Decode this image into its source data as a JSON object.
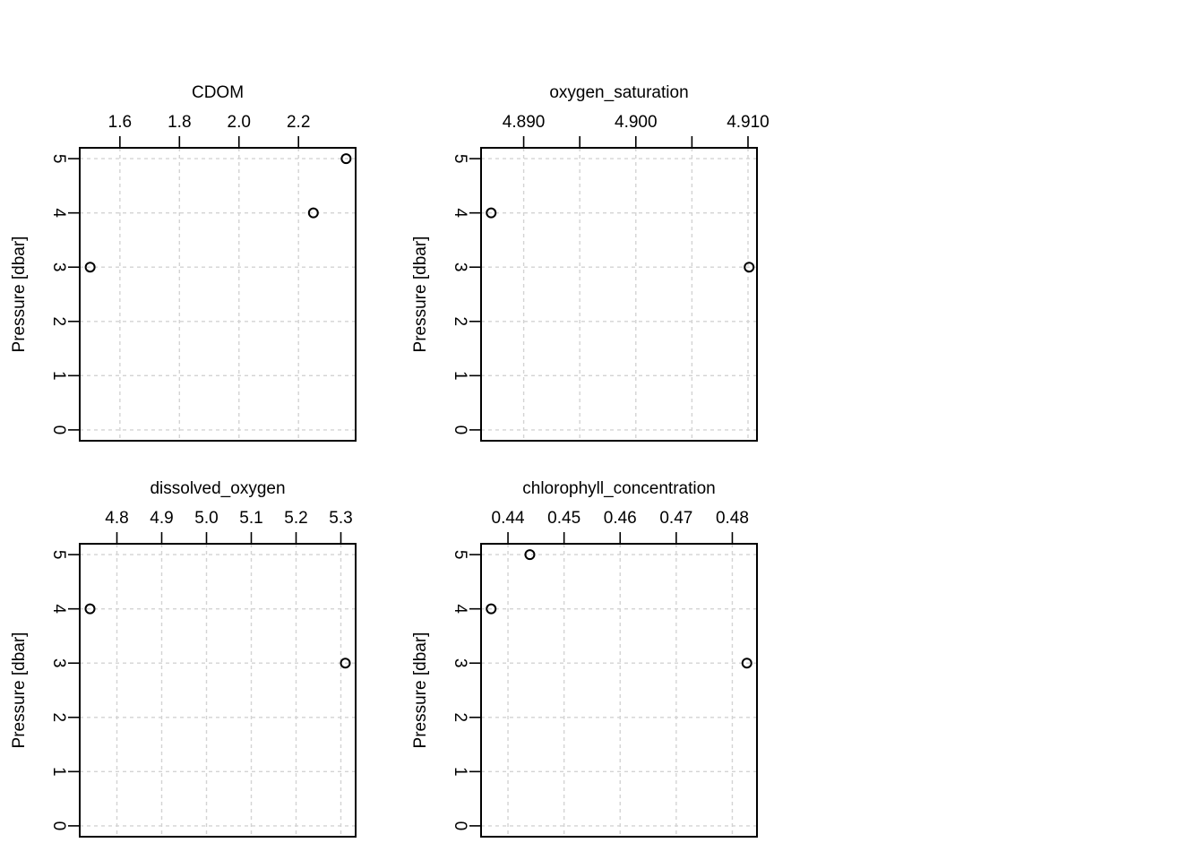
{
  "chart_data": [
    {
      "type": "scatter",
      "title": "CDOM",
      "ylabel": "Pressure [dbar]",
      "xlim": [
        1.465,
        2.392
      ],
      "ylim": [
        5.2,
        -0.2
      ],
      "xticks": [
        1.6,
        1.8,
        2.0,
        2.2
      ],
      "xtick_labels": [
        "1.6",
        "1.8",
        "2.0",
        "2.2"
      ],
      "yticks": [
        0,
        1,
        2,
        3,
        4,
        5
      ],
      "ytick_labels": [
        "0",
        "1",
        "2",
        "3",
        "4",
        "5"
      ],
      "grid": true,
      "points": [
        {
          "x": 1.5,
          "y": 3
        },
        {
          "x": 2.25,
          "y": 4
        },
        {
          "x": 2.36,
          "y": 5
        }
      ]
    },
    {
      "type": "scatter",
      "title": "oxygen_saturation",
      "ylabel": "Pressure [dbar]",
      "xlim": [
        4.8862,
        4.9108
      ],
      "ylim": [
        5.2,
        -0.2
      ],
      "xticks": [
        4.89,
        4.895,
        4.9,
        4.905,
        4.91
      ],
      "xtick_labels": [
        "4.890",
        "",
        "4.900",
        "",
        "4.910"
      ],
      "yticks": [
        0,
        1,
        2,
        3,
        4,
        5
      ],
      "ytick_labels": [
        "0",
        "1",
        "2",
        "3",
        "4",
        "5"
      ],
      "grid": true,
      "points": [
        {
          "x": 4.9101,
          "y": 3
        },
        {
          "x": 4.8871,
          "y": 4
        }
      ]
    },
    {
      "type": "scatter",
      "title": "dissolved_oxygen",
      "ylabel": "Pressure [dbar]",
      "xlim": [
        4.717,
        5.333
      ],
      "ylim": [
        5.2,
        -0.2
      ],
      "xticks": [
        4.8,
        4.9,
        5.0,
        5.1,
        5.2,
        5.3
      ],
      "xtick_labels": [
        "4.8",
        "4.9",
        "5.0",
        "5.1",
        "5.2",
        "5.3"
      ],
      "yticks": [
        0,
        1,
        2,
        3,
        4,
        5
      ],
      "ytick_labels": [
        "0",
        "1",
        "2",
        "3",
        "4",
        "5"
      ],
      "grid": true,
      "points": [
        {
          "x": 5.31,
          "y": 3
        },
        {
          "x": 4.74,
          "y": 4
        }
      ]
    },
    {
      "type": "scatter",
      "title": "chlorophyll_concentration",
      "ylabel": "Pressure [dbar]",
      "xlim": [
        0.4352,
        0.4844
      ],
      "ylim": [
        5.2,
        -0.2
      ],
      "xticks": [
        0.44,
        0.45,
        0.46,
        0.47,
        0.48
      ],
      "xtick_labels": [
        "0.44",
        "0.45",
        "0.46",
        "0.47",
        "0.48"
      ],
      "yticks": [
        0,
        1,
        2,
        3,
        4,
        5
      ],
      "ytick_labels": [
        "0",
        "1",
        "2",
        "3",
        "4",
        "5"
      ],
      "grid": true,
      "points": [
        {
          "x": 0.4826,
          "y": 3
        },
        {
          "x": 0.437,
          "y": 4
        },
        {
          "x": 0.4439,
          "y": 5
        }
      ]
    }
  ]
}
